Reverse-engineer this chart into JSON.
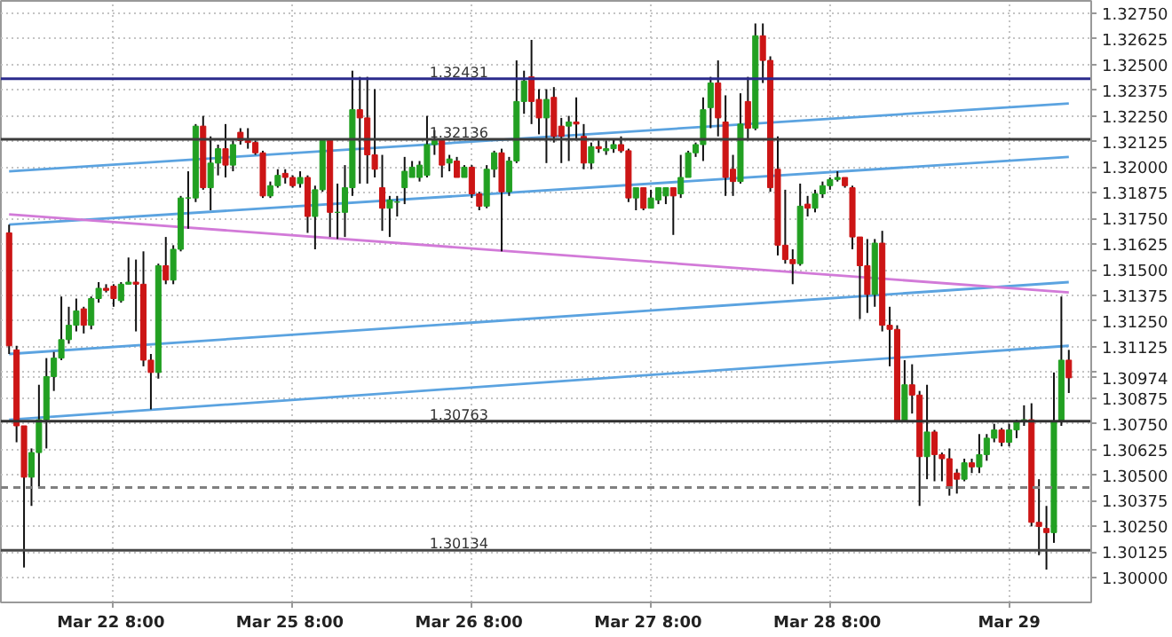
{
  "chart_data": {
    "type": "candlestick",
    "categories": [
      null,
      null,
      null,
      null,
      null,
      null,
      null,
      null,
      null,
      null,
      null,
      null,
      null,
      null,
      "Mar 22  8:00",
      null,
      null,
      null,
      null,
      null,
      null,
      null,
      null,
      null,
      null,
      null,
      null,
      null,
      null,
      null,
      null,
      null,
      null,
      null,
      null,
      null,
      null,
      null,
      "Mar 25  8:00",
      null,
      null,
      null,
      null,
      null,
      null,
      null,
      null,
      null,
      null,
      null,
      null,
      null,
      null,
      null,
      null,
      null,
      null,
      null,
      null,
      null,
      null,
      null,
      "Mar 26  8:00",
      null,
      null,
      null,
      null,
      null,
      null,
      null,
      null,
      null,
      null,
      null,
      null,
      null,
      null,
      null,
      null,
      null,
      null,
      null,
      null,
      null,
      null,
      null,
      "Mar 27  8:00",
      null,
      null,
      null,
      null,
      null,
      null,
      null,
      null,
      null,
      null,
      null,
      null,
      null,
      null,
      null,
      null,
      null,
      null,
      null,
      null,
      null,
      null,
      null,
      "Mar 28  8:00",
      null,
      null,
      null,
      null,
      null,
      null,
      null,
      null,
      null,
      null,
      null,
      null,
      null,
      null,
      null,
      null,
      null,
      null,
      null,
      null,
      null,
      null,
      null,
      "Mar 29",
      null,
      null,
      null,
      null,
      null,
      null,
      null,
      null
    ],
    "ylim": [
      1.2988,
      1.3281
    ],
    "yticks": [
      {
        "value": 1.3,
        "label": "1.30000"
      },
      {
        "value": 1.30125,
        "label": "1.30125"
      },
      {
        "value": 1.3025,
        "label": "1.30250"
      },
      {
        "value": 1.30375,
        "label": "1.30375"
      },
      {
        "value": 1.305,
        "label": "1.30500"
      },
      {
        "value": 1.30625,
        "label": "1.30625"
      },
      {
        "value": 1.3075,
        "label": "1.30750"
      },
      {
        "value": 1.30875,
        "label": "1.30875"
      },
      {
        "value": 1.30974,
        "label": "1.30974"
      },
      {
        "value": 1.31,
        "label": null
      },
      {
        "value": 1.31125,
        "label": "1.31125"
      },
      {
        "value": 1.3125,
        "label": "1.31250"
      },
      {
        "value": 1.31375,
        "label": "1.31375"
      },
      {
        "value": 1.315,
        "label": "1.31500"
      },
      {
        "value": 1.31625,
        "label": "1.31625"
      },
      {
        "value": 1.3175,
        "label": "1.31750"
      },
      {
        "value": 1.31875,
        "label": "1.31875"
      },
      {
        "value": 1.32,
        "label": "1.32000"
      },
      {
        "value": 1.32125,
        "label": "1.32125"
      },
      {
        "value": 1.3225,
        "label": "1.32250"
      },
      {
        "value": 1.32375,
        "label": "1.32375"
      },
      {
        "value": 1.325,
        "label": "1.32500"
      },
      {
        "value": 1.32625,
        "label": "1.32625"
      },
      {
        "value": 1.3275,
        "label": "1.32750"
      }
    ],
    "grid": true,
    "ref_lines": [
      {
        "axis": "y",
        "value": 1.32431,
        "label": "1.32431",
        "color": "#2b2b8c",
        "line_style": "solid"
      },
      {
        "axis": "y",
        "value": 1.32136,
        "label": "1.32136",
        "color": "#3c3c3c",
        "line_style": "solid"
      },
      {
        "axis": "y",
        "value": 1.30763,
        "label": "1.30763",
        "color": "#303030",
        "line_style": "solid"
      },
      {
        "axis": "y",
        "value": 1.30134,
        "label": "1.30134",
        "color": "#484848",
        "line_style": "solid"
      },
      {
        "axis": "y",
        "value": 1.3044,
        "color": "#808080",
        "line_style": "dashed"
      }
    ],
    "series": [
      {
        "type": "line",
        "values": [
          1.3198,
          null,
          null,
          null,
          null,
          null,
          null,
          null,
          null,
          null,
          null,
          null,
          null,
          null,
          null,
          null,
          null,
          null,
          null,
          null,
          null,
          null,
          null,
          null,
          null,
          null,
          null,
          null,
          null,
          null,
          null,
          null,
          null,
          null,
          null,
          null,
          null,
          null,
          null,
          null,
          null,
          null,
          null,
          null,
          null,
          null,
          null,
          null,
          null,
          null,
          null,
          null,
          null,
          null,
          null,
          null,
          null,
          null,
          null,
          null,
          null,
          null,
          null,
          null,
          null,
          null,
          null,
          null,
          null,
          null,
          null,
          null,
          null,
          null,
          null,
          null,
          null,
          null,
          null,
          null,
          null,
          null,
          null,
          null,
          null,
          null,
          null,
          null,
          null,
          null,
          null,
          null,
          null,
          null,
          null,
          null,
          null,
          null,
          null,
          null,
          null,
          null,
          null,
          null,
          null,
          null,
          null,
          null,
          null,
          null,
          null,
          null,
          null,
          null,
          null,
          null,
          null,
          null,
          null,
          null,
          null,
          null,
          null,
          null,
          null,
          null,
          null,
          null,
          null,
          null,
          null,
          null,
          null,
          null,
          null,
          null,
          null,
          null,
          null,
          null,
          null,
          null,
          1.3231
        ],
        "color": "#5ba3e0"
      },
      {
        "type": "line",
        "values": [
          1.3172,
          null,
          null,
          null,
          null,
          null,
          null,
          null,
          null,
          null,
          null,
          null,
          null,
          null,
          null,
          null,
          null,
          null,
          null,
          null,
          null,
          null,
          null,
          null,
          null,
          null,
          null,
          null,
          null,
          null,
          null,
          null,
          null,
          null,
          null,
          null,
          null,
          null,
          null,
          null,
          null,
          null,
          null,
          null,
          null,
          null,
          null,
          null,
          null,
          null,
          null,
          null,
          null,
          null,
          null,
          null,
          null,
          null,
          null,
          null,
          null,
          null,
          null,
          null,
          null,
          null,
          null,
          null,
          null,
          null,
          null,
          null,
          null,
          null,
          null,
          null,
          null,
          null,
          null,
          null,
          null,
          null,
          null,
          null,
          null,
          null,
          null,
          null,
          null,
          null,
          null,
          null,
          null,
          null,
          null,
          null,
          null,
          null,
          null,
          null,
          null,
          null,
          null,
          null,
          null,
          null,
          null,
          null,
          null,
          null,
          null,
          null,
          null,
          null,
          null,
          null,
          null,
          null,
          null,
          null,
          null,
          null,
          null,
          null,
          null,
          null,
          null,
          null,
          null,
          null,
          null,
          null,
          null,
          null,
          null,
          null,
          null,
          null,
          null,
          null,
          null,
          null,
          1.3205
        ],
        "color": "#5ba3e0"
      },
      {
        "type": "line",
        "values": [
          1.3109,
          null,
          null,
          null,
          null,
          null,
          null,
          null,
          null,
          null,
          null,
          null,
          null,
          null,
          null,
          null,
          null,
          null,
          null,
          null,
          null,
          null,
          null,
          null,
          null,
          null,
          null,
          null,
          null,
          null,
          null,
          null,
          null,
          null,
          null,
          null,
          null,
          null,
          null,
          null,
          null,
          null,
          null,
          null,
          null,
          null,
          null,
          null,
          null,
          null,
          null,
          null,
          null,
          null,
          null,
          null,
          null,
          null,
          null,
          null,
          null,
          null,
          null,
          null,
          null,
          null,
          null,
          null,
          null,
          null,
          null,
          null,
          null,
          null,
          null,
          null,
          null,
          null,
          null,
          null,
          null,
          null,
          null,
          null,
          null,
          null,
          null,
          null,
          null,
          null,
          null,
          null,
          null,
          null,
          null,
          null,
          null,
          null,
          null,
          null,
          null,
          null,
          null,
          null,
          null,
          null,
          null,
          null,
          null,
          null,
          null,
          null,
          null,
          null,
          null,
          null,
          null,
          null,
          null,
          null,
          null,
          null,
          null,
          null,
          null,
          null,
          null,
          null,
          null,
          null,
          null,
          null,
          null,
          null,
          null,
          null,
          null,
          null,
          null,
          null,
          null,
          null,
          1.3144
        ],
        "color": "#5ba3e0"
      },
      {
        "type": "line",
        "values": [
          1.3077,
          null,
          null,
          null,
          null,
          null,
          null,
          null,
          null,
          null,
          null,
          null,
          null,
          null,
          null,
          null,
          null,
          null,
          null,
          null,
          null,
          null,
          null,
          null,
          null,
          null,
          null,
          null,
          null,
          null,
          null,
          null,
          null,
          null,
          null,
          null,
          null,
          null,
          null,
          null,
          null,
          null,
          null,
          null,
          null,
          null,
          null,
          null,
          null,
          null,
          null,
          null,
          null,
          null,
          null,
          null,
          null,
          null,
          null,
          null,
          null,
          null,
          null,
          null,
          null,
          null,
          null,
          null,
          null,
          null,
          null,
          null,
          null,
          null,
          null,
          null,
          null,
          null,
          null,
          null,
          null,
          null,
          null,
          null,
          null,
          null,
          null,
          null,
          null,
          null,
          null,
          null,
          null,
          null,
          null,
          null,
          null,
          null,
          null,
          null,
          null,
          null,
          null,
          null,
          null,
          null,
          null,
          null,
          null,
          null,
          null,
          null,
          null,
          null,
          null,
          null,
          null,
          null,
          null,
          null,
          null,
          null,
          null,
          null,
          null,
          null,
          null,
          null,
          null,
          null,
          null,
          null,
          null,
          null,
          null,
          null,
          null,
          null,
          null,
          null,
          null,
          null,
          1.3113
        ],
        "color": "#5ba3e0"
      },
      {
        "type": "line",
        "values": [
          1.3177,
          null,
          null,
          null,
          null,
          null,
          null,
          null,
          null,
          null,
          null,
          null,
          null,
          null,
          null,
          null,
          null,
          null,
          null,
          null,
          null,
          null,
          null,
          null,
          null,
          null,
          null,
          null,
          null,
          null,
          null,
          null,
          null,
          null,
          null,
          null,
          null,
          null,
          null,
          null,
          null,
          null,
          null,
          null,
          null,
          null,
          null,
          null,
          null,
          null,
          null,
          null,
          null,
          null,
          null,
          null,
          null,
          null,
          null,
          null,
          null,
          null,
          null,
          null,
          null,
          null,
          null,
          null,
          null,
          null,
          null,
          null,
          null,
          null,
          null,
          null,
          null,
          null,
          null,
          null,
          null,
          null,
          null,
          null,
          null,
          null,
          null,
          null,
          null,
          null,
          null,
          null,
          null,
          null,
          null,
          null,
          null,
          null,
          null,
          null,
          null,
          null,
          null,
          null,
          null,
          null,
          null,
          null,
          null,
          null,
          null,
          null,
          null,
          null,
          null,
          null,
          null,
          null,
          null,
          null,
          null,
          null,
          null,
          null,
          null,
          null,
          null,
          null,
          null,
          null,
          null,
          null,
          null,
          null,
          null,
          null,
          null,
          null,
          null,
          null,
          null,
          null,
          1.3139
        ],
        "color": "#d27ad8"
      },
      {
        "colors": [
          "#cc1515",
          "#cc1515",
          "#cc1515",
          "#22a022",
          "#22a022",
          "#22a022",
          "#22a022",
          "#22a022",
          "#22a022",
          "#22a022",
          "#cc1515",
          "#22a022",
          "#22a022",
          "#cc1515",
          "#cc1515",
          "#22a022",
          "#22a022",
          "#cc1515",
          "#cc1515",
          "#cc1515",
          "#22a022",
          "#cc1515",
          "#22a022",
          "#22a022",
          "#22a022",
          "#22a022",
          "#cc1515",
          "#22a022",
          "#22a022",
          "#cc1515",
          "#22a022",
          "#cc1515",
          "#cc1515",
          "#cc1515",
          "#cc1515",
          "#22a022",
          "#22a022",
          "#cc1515",
          "#cc1515",
          "#22a022",
          "#cc1515",
          "#22a022",
          "#22a022",
          "#cc1515",
          "#22a022",
          "#22a022",
          "#22a022",
          "#cc1515",
          "#cc1515",
          "#cc1515",
          "#cc1515",
          "#22a022",
          "#22a022",
          "#22a022",
          "#22a022",
          "#22a022",
          "#22a022",
          "#22a022",
          "#cc1515",
          "#22a022",
          "#cc1515",
          "#22a022",
          "#cc1515",
          "#cc1515",
          "#22a022",
          "#22a022",
          "#cc1515",
          "#22a022",
          "#22a022",
          "#22a022",
          "#cc1515",
          "#cc1515",
          "#22a022",
          "#cc1515",
          "#cc1515",
          "#22a022",
          "#cc1515",
          "#cc1515",
          "#22a022",
          "#cc1515",
          "#22a022",
          "#22a022",
          "#cc1515",
          "#cc1515",
          "#22a022",
          "#cc1515",
          "#22a022",
          "#22a022",
          "#22a022",
          "#cc1515",
          "#22a022",
          "#22a022",
          "#22a022",
          "#22a022",
          "#22a022",
          "#cc1515",
          "#cc1515",
          "#cc1515",
          "#22a022",
          "#cc1515",
          "#22a022",
          "#cc1515",
          "#cc1515",
          "#cc1515",
          "#cc1515",
          "#cc1515",
          "#22a022",
          "#cc1515",
          "#22a022",
          "#22a022",
          "#22a022",
          "#22a022",
          "#cc1515",
          "#cc1515",
          "#cc1515",
          "#cc1515",
          "#22a022",
          "#cc1515",
          "#cc1515",
          "#cc1515",
          "#22a022",
          "#cc1515",
          "#cc1515",
          "#22a022",
          "#cc1515",
          "#cc1515",
          "#cc1515",
          "#cc1515",
          "#22a022",
          "#cc1515",
          "#22a022",
          "#22a022",
          "#22a022",
          "#cc1515",
          "#22a022",
          "#22a022",
          "#22a022",
          "#cc1515",
          "#cc1515",
          "#cc1515",
          "#22a022",
          "#22a022",
          "#cc1515"
        ],
        "ohlc": [
          [
            1.3168,
            1.3172,
            1.3109,
            1.3113
          ],
          [
            1.3111,
            1.3113,
            1.3066,
            1.3074
          ],
          [
            1.3074,
            1.3074,
            1.3005,
            1.3049
          ],
          [
            1.3049,
            1.3063,
            1.3035,
            1.3061
          ],
          [
            1.3061,
            1.3094,
            1.3044,
            1.3077
          ],
          [
            1.3077,
            1.3107,
            1.3063,
            1.3098
          ],
          [
            1.3098,
            1.311,
            1.3091,
            1.3107
          ],
          [
            1.3107,
            1.3137,
            1.3106,
            1.3116
          ],
          [
            1.3116,
            1.3132,
            1.3114,
            1.3123
          ],
          [
            1.3123,
            1.3136,
            1.312,
            1.313
          ],
          [
            1.3131,
            1.3132,
            1.3119,
            1.3123
          ],
          [
            1.3123,
            1.3137,
            1.3121,
            1.3136
          ],
          [
            1.3136,
            1.3144,
            1.3134,
            1.3141
          ],
          [
            1.3141,
            1.3143,
            1.3139,
            1.314
          ],
          [
            1.3142,
            1.3143,
            1.3132,
            1.3136
          ],
          [
            1.3135,
            1.3144,
            1.3134,
            1.3143
          ],
          [
            1.3143,
            1.3156,
            1.3143,
            1.3144
          ],
          [
            1.3144,
            1.3155,
            1.312,
            1.3143
          ],
          [
            1.3143,
            1.3159,
            1.3103,
            1.3106
          ],
          [
            1.3106,
            1.3109,
            1.3082,
            1.31
          ],
          [
            1.31,
            1.3153,
            1.3097,
            1.3152
          ],
          [
            1.3152,
            1.3166,
            1.3143,
            1.3145
          ],
          [
            1.3145,
            1.3162,
            1.3143,
            1.316
          ],
          [
            1.316,
            1.3186,
            1.3159,
            1.3185
          ],
          [
            1.3185,
            1.3198,
            1.317,
            1.3185
          ],
          [
            1.3185,
            1.3221,
            1.3183,
            1.322
          ],
          [
            1.322,
            1.3225,
            1.3189,
            1.319
          ],
          [
            1.319,
            1.3215,
            1.3179,
            1.3202
          ],
          [
            1.3202,
            1.3211,
            1.3196,
            1.3209
          ],
          [
            1.3209,
            1.3221,
            1.3195,
            1.3201
          ],
          [
            1.3201,
            1.3213,
            1.3198,
            1.3211
          ],
          [
            1.3217,
            1.3219,
            1.3211,
            1.3213
          ],
          [
            1.3213,
            1.3219,
            1.3209,
            1.3212
          ],
          [
            1.3212,
            1.3213,
            1.3206,
            1.3207
          ],
          [
            1.3207,
            1.3208,
            1.3185,
            1.3186
          ],
          [
            1.3186,
            1.3193,
            1.3185,
            1.3191
          ],
          [
            1.3191,
            1.3199,
            1.319,
            1.3196
          ],
          [
            1.3197,
            1.3199,
            1.3192,
            1.3195
          ],
          [
            1.3195,
            1.3196,
            1.319,
            1.3191
          ],
          [
            1.3192,
            1.3198,
            1.319,
            1.3195
          ],
          [
            1.3195,
            1.3196,
            1.3168,
            1.3176
          ],
          [
            1.3176,
            1.3191,
            1.316,
            1.3189
          ],
          [
            1.3189,
            1.3213,
            1.3188,
            1.3213
          ],
          [
            1.3213,
            1.3213,
            1.3166,
            1.3178
          ],
          [
            1.3178,
            1.3192,
            1.3165,
            1.3178
          ],
          [
            1.3178,
            1.3201,
            1.3166,
            1.319
          ],
          [
            1.319,
            1.3247,
            1.3186,
            1.3228
          ],
          [
            1.3228,
            1.3244,
            1.3192,
            1.3224
          ],
          [
            1.3224,
            1.3244,
            1.3192,
            1.3206
          ],
          [
            1.3206,
            1.3238,
            1.3195,
            1.3199
          ],
          [
            1.319,
            1.3206,
            1.3169,
            1.318
          ],
          [
            1.318,
            1.3186,
            1.3166,
            1.3184
          ],
          [
            1.3183,
            1.3186,
            1.3176,
            1.3183
          ],
          [
            1.319,
            1.3205,
            1.3182,
            1.3198
          ],
          [
            1.3195,
            1.3203,
            1.3195,
            1.32
          ],
          [
            1.3195,
            1.3203,
            1.3193,
            1.3201
          ],
          [
            1.3196,
            1.3225,
            1.3195,
            1.3211
          ],
          [
            1.3211,
            1.3218,
            1.3206,
            1.3213
          ],
          [
            1.3213,
            1.3214,
            1.3195,
            1.3201
          ],
          [
            1.3202,
            1.3206,
            1.3198,
            1.3204
          ],
          [
            1.3203,
            1.3205,
            1.3195,
            1.3195
          ],
          [
            1.3195,
            1.3201,
            1.3195,
            1.32
          ],
          [
            1.32,
            1.3201,
            1.3185,
            1.3187
          ],
          [
            1.3187,
            1.3188,
            1.3179,
            1.3181
          ],
          [
            1.3181,
            1.3201,
            1.318,
            1.3199
          ],
          [
            1.3199,
            1.3208,
            1.3195,
            1.3207
          ],
          [
            1.3207,
            1.3209,
            1.3159,
            1.3188
          ],
          [
            1.3188,
            1.3205,
            1.3186,
            1.3203
          ],
          [
            1.3203,
            1.3252,
            1.3202,
            1.3232
          ],
          [
            1.3232,
            1.3247,
            1.3226,
            1.3242
          ],
          [
            1.3244,
            1.3262,
            1.3221,
            1.3232
          ],
          [
            1.3233,
            1.3238,
            1.3216,
            1.3224
          ],
          [
            1.3224,
            1.3238,
            1.3202,
            1.3233
          ],
          [
            1.3234,
            1.3239,
            1.3212,
            1.3215
          ],
          [
            1.322,
            1.3224,
            1.3202,
            1.3215
          ],
          [
            1.322,
            1.3225,
            1.3203,
            1.3222
          ],
          [
            1.3222,
            1.3234,
            1.3213,
            1.3221
          ],
          [
            1.3215,
            1.3221,
            1.3199,
            1.3202
          ],
          [
            1.3202,
            1.3212,
            1.3199,
            1.321
          ],
          [
            1.321,
            1.3213,
            1.3207,
            1.3209
          ],
          [
            1.3208,
            1.3213,
            1.3206,
            1.3209
          ],
          [
            1.3209,
            1.3214,
            1.3207,
            1.3211
          ],
          [
            1.3211,
            1.3215,
            1.3207,
            1.3208
          ],
          [
            1.3208,
            1.3209,
            1.3183,
            1.3185
          ],
          [
            1.3185,
            1.319,
            1.3179,
            1.319
          ],
          [
            1.319,
            1.319,
            1.3179,
            1.318
          ],
          [
            1.318,
            1.3189,
            1.318,
            1.3185
          ],
          [
            1.3184,
            1.319,
            1.3182,
            1.319
          ],
          [
            1.3186,
            1.319,
            1.3182,
            1.319
          ],
          [
            1.319,
            1.319,
            1.3167,
            1.3186
          ],
          [
            1.3187,
            1.3206,
            1.3185,
            1.3195
          ],
          [
            1.3195,
            1.3208,
            1.3195,
            1.3207
          ],
          [
            1.3207,
            1.3212,
            1.3205,
            1.3211
          ],
          [
            1.3211,
            1.3234,
            1.3203,
            1.3228
          ],
          [
            1.3229,
            1.3244,
            1.3219,
            1.3241
          ],
          [
            1.3241,
            1.3252,
            1.3215,
            1.3224
          ],
          [
            1.3222,
            1.3235,
            1.3186,
            1.3195
          ],
          [
            1.3199,
            1.3206,
            1.3186,
            1.3193
          ],
          [
            1.3193,
            1.3236,
            1.3192,
            1.3221
          ],
          [
            1.3232,
            1.3244,
            1.3213,
            1.3219
          ],
          [
            1.3219,
            1.327,
            1.3218,
            1.3264
          ],
          [
            1.3264,
            1.327,
            1.3241,
            1.3252
          ],
          [
            1.3252,
            1.3254,
            1.3188,
            1.319
          ],
          [
            1.3199,
            1.3215,
            1.3157,
            1.3162
          ],
          [
            1.3162,
            1.3189,
            1.3153,
            1.3155
          ],
          [
            1.3155,
            1.316,
            1.3143,
            1.3153
          ],
          [
            1.3153,
            1.3192,
            1.3152,
            1.3181
          ],
          [
            1.3182,
            1.3186,
            1.3176,
            1.318
          ],
          [
            1.318,
            1.3189,
            1.3178,
            1.3187
          ],
          [
            1.3187,
            1.3193,
            1.3185,
            1.3191
          ],
          [
            1.3191,
            1.3195,
            1.3189,
            1.3194
          ],
          [
            1.3194,
            1.3198,
            1.3193,
            1.3195
          ],
          [
            1.3195,
            1.3195,
            1.319,
            1.3191
          ],
          [
            1.319,
            1.3191,
            1.316,
            1.3166
          ],
          [
            1.3166,
            1.3166,
            1.3126,
            1.3152
          ],
          [
            1.3152,
            1.3165,
            1.3129,
            1.3138
          ],
          [
            1.3138,
            1.3165,
            1.3132,
            1.3163
          ],
          [
            1.3163,
            1.3169,
            1.312,
            1.3123
          ],
          [
            1.3123,
            1.3132,
            1.3103,
            1.3121
          ],
          [
            1.3121,
            1.3123,
            1.3076,
            1.3076
          ],
          [
            1.3076,
            1.3106,
            1.3076,
            1.3094
          ],
          [
            1.3094,
            1.3104,
            1.308,
            1.3089
          ],
          [
            1.3089,
            1.3091,
            1.3035,
            1.3059
          ],
          [
            1.3059,
            1.3094,
            1.3048,
            1.3071
          ],
          [
            1.3071,
            1.3072,
            1.3047,
            1.306
          ],
          [
            1.306,
            1.3061,
            1.3047,
            1.3058
          ],
          [
            1.3058,
            1.3063,
            1.304,
            1.3044
          ],
          [
            1.3051,
            1.3053,
            1.3041,
            1.3048
          ],
          [
            1.3048,
            1.3058,
            1.3047,
            1.3056
          ],
          [
            1.3056,
            1.3058,
            1.3051,
            1.3054
          ],
          [
            1.3054,
            1.307,
            1.3051,
            1.306
          ],
          [
            1.306,
            1.307,
            1.3057,
            1.3068
          ],
          [
            1.3068,
            1.3075,
            1.3066,
            1.3072
          ],
          [
            1.3072,
            1.3073,
            1.3064,
            1.3066
          ],
          [
            1.3066,
            1.3075,
            1.3064,
            1.3072
          ],
          [
            1.3072,
            1.3077,
            1.3068,
            1.3076
          ],
          [
            1.3076,
            1.3084,
            1.3074,
            1.3077
          ],
          [
            1.3077,
            1.3085,
            1.3025,
            1.3027
          ],
          [
            1.3027,
            1.3048,
            1.3011,
            1.3025
          ],
          [
            1.3024,
            1.3035,
            1.3004,
            1.3022
          ],
          [
            1.3022,
            1.31,
            1.3017,
            1.3076
          ],
          [
            1.3076,
            1.3137,
            1.3074,
            1.3106
          ],
          [
            1.3106,
            1.3111,
            1.309,
            1.30974
          ]
        ]
      }
    ]
  }
}
